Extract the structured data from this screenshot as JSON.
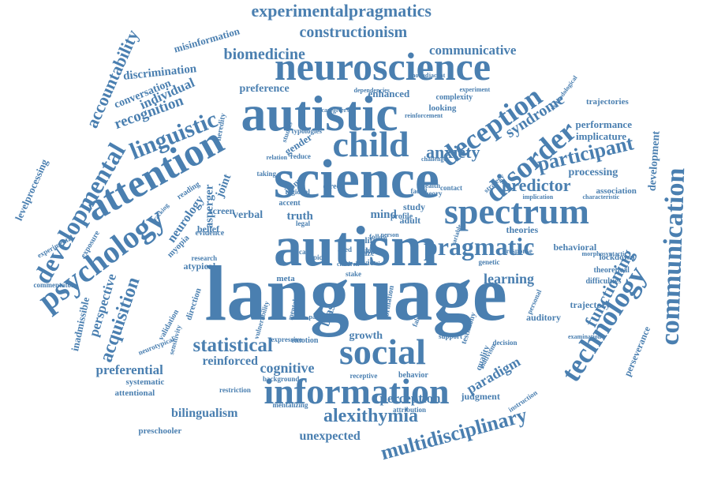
{
  "colors": {
    "word": "#4a7fb0",
    "background": "#ffffff"
  },
  "words": [
    "language",
    "autism",
    "science",
    "autistic",
    "neuroscience",
    "child",
    "attention",
    "spectrum",
    "information",
    "social",
    "disorder",
    "psychology",
    "developmental",
    "communication",
    "technology",
    "deception",
    "pragmatic",
    "linguistic",
    "multidisciplinary",
    "anxiety",
    "participant",
    "experimentalpragmatics",
    "constructionism",
    "statistical",
    "alexithymia",
    "predictor",
    "accountability",
    "acquisition",
    "biomedicine",
    "communicative",
    "recognition",
    "individual",
    "perception",
    "functioning",
    "syndrome",
    "discrimination",
    "conversation",
    "misinformation",
    "learning",
    "cognitive",
    "reinforced",
    "preferential",
    "bilingualism",
    "unexpected",
    "paradigm",
    "perspective",
    "inadmissible",
    "levelprocessing",
    "development",
    "perseverance",
    "processing",
    "performance",
    "implicature",
    "trajectories",
    "behavioral",
    "theories",
    "lockdown",
    "mind",
    "truth",
    "verbal",
    "screen",
    "belief",
    "joint",
    "asperger",
    "neurology",
    "atypical",
    "myopia",
    "preference",
    "enhanced",
    "gender",
    "irony",
    "direct",
    "study",
    "adult",
    "growth",
    "judgment",
    "trajectory",
    "auditory",
    "attentional",
    "systematic",
    "preschooler",
    "neurotypical",
    "validation",
    "association",
    "decision",
    "theoretical",
    "difficulties",
    "response",
    "genetic",
    "heredity",
    "exposure",
    "experimental",
    "commentator",
    "reading",
    "tracking",
    "looking",
    "complexity",
    "experiment",
    "methodological",
    "support",
    "emotion",
    "parent",
    "attribution",
    "behavior",
    "formation",
    "quality",
    "bias",
    "stake",
    "review",
    "life",
    "skill",
    "gaze",
    "pitch",
    "follow",
    "person",
    "testimony",
    "nativism",
    "instruction",
    "personal",
    "examination",
    "health",
    "contact",
    "theory",
    "accent",
    "taking",
    "studies",
    "typologies",
    "dependencies",
    "nonadjacent",
    "reinforcement",
    "restriction",
    "background",
    "mentalizing",
    "receptive",
    "expressive",
    "direction",
    "vulnerability",
    "sensitivity",
    "research",
    "evidence",
    "regional",
    "profile",
    "false",
    "reduce",
    "relation",
    "facial",
    "aged",
    "legal",
    "care",
    "topic",
    "meta",
    "mental",
    "strategy",
    "challenge",
    "caregivers",
    "implication",
    "characteristic",
    "morphosyntactic",
    "variable",
    "children"
  ]
}
